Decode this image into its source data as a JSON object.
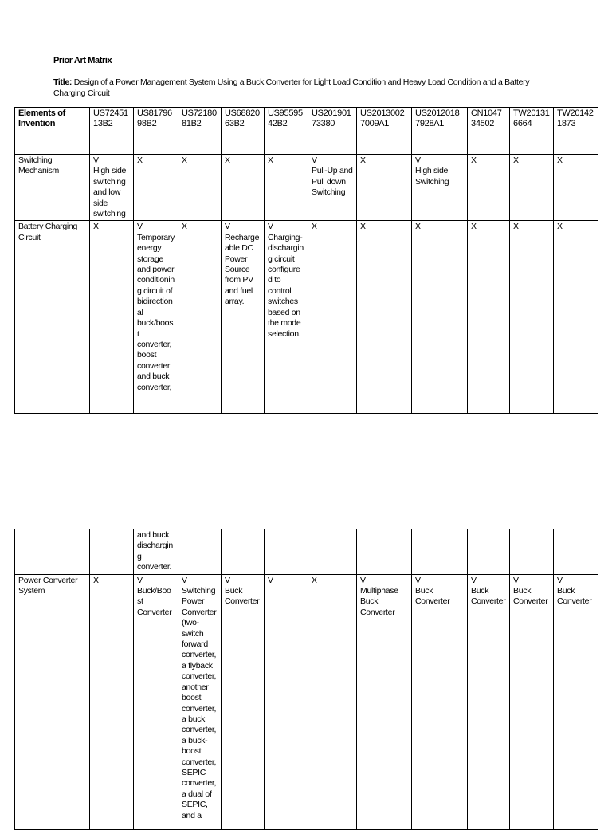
{
  "heading": "Prior Art Matrix",
  "title_label": "Title:",
  "title_text": "Design of a Power Management System Using a Buck Converter for Light Load Condition and Heavy Load Condition and a Battery Charging Circuit",
  "columns": [
    "Elements of Invention",
    "US7245113B2",
    "US8179698B2",
    "US7218081B2",
    "US6882063B2",
    "US9559542B2",
    "US20190173380",
    "US20130027009A1",
    "US20120187928A1",
    "CN104734502",
    "TW201316664",
    "TW201421873"
  ],
  "rows_page1": [
    {
      "label": "Switching Mechanism",
      "cells": [
        {
          "mark": "V",
          "detail": "High side switching and low side switching"
        },
        {
          "mark": "X",
          "detail": ""
        },
        {
          "mark": "X",
          "detail": ""
        },
        {
          "mark": "X",
          "detail": ""
        },
        {
          "mark": "X",
          "detail": ""
        },
        {
          "mark": "V",
          "detail": "Pull-Up and Pull down Switching"
        },
        {
          "mark": "X",
          "detail": ""
        },
        {
          "mark": "V",
          "detail": "High side Switching"
        },
        {
          "mark": "X",
          "detail": ""
        },
        {
          "mark": "X",
          "detail": ""
        },
        {
          "mark": "X",
          "detail": ""
        }
      ]
    },
    {
      "label": "Battery Charging Circuit",
      "cells": [
        {
          "mark": "X",
          "detail": ""
        },
        {
          "mark": "V",
          "detail": "Temporary energy storage and power conditioning circuit of bidirectional buck/boost converter, boost converter and buck converter,"
        },
        {
          "mark": "X",
          "detail": ""
        },
        {
          "mark": "V",
          "detail": "Rechargeable DC Power Source from PV and fuel array."
        },
        {
          "mark": "V",
          "detail": "Charging-discharging circuit configured to control switches based on the mode selection."
        },
        {
          "mark": "X",
          "detail": ""
        },
        {
          "mark": "X",
          "detail": ""
        },
        {
          "mark": "X",
          "detail": ""
        },
        {
          "mark": "X",
          "detail": ""
        },
        {
          "mark": "X",
          "detail": ""
        },
        {
          "mark": "X",
          "detail": ""
        }
      ]
    }
  ],
  "rows_page2": [
    {
      "label": "",
      "cells": [
        {
          "mark": "",
          "detail": ""
        },
        {
          "mark": "",
          "detail": "and buck discharging converter."
        },
        {
          "mark": "",
          "detail": ""
        },
        {
          "mark": "",
          "detail": ""
        },
        {
          "mark": "",
          "detail": ""
        },
        {
          "mark": "",
          "detail": ""
        },
        {
          "mark": "",
          "detail": ""
        },
        {
          "mark": "",
          "detail": ""
        },
        {
          "mark": "",
          "detail": ""
        },
        {
          "mark": "",
          "detail": ""
        },
        {
          "mark": "",
          "detail": ""
        }
      ]
    },
    {
      "label": "Power Converter System",
      "cells": [
        {
          "mark": "X",
          "detail": ""
        },
        {
          "mark": "V",
          "detail": "Buck/Boost Converter"
        },
        {
          "mark": "V",
          "detail": "Switching Power Converter (two-switch forward converter, a flyback converter, another boost converter, a buck converter, a buck-boost converter, SEPIC converter, a dual of SEPIC, and a"
        },
        {
          "mark": "V",
          "detail": "Buck Converter"
        },
        {
          "mark": "V",
          "detail": ""
        },
        {
          "mark": "X",
          "detail": ""
        },
        {
          "mark": "V",
          "detail": "Multiphase Buck Converter"
        },
        {
          "mark": "V",
          "detail": "Buck Converter"
        },
        {
          "mark": "V",
          "detail": "Buck Converter"
        },
        {
          "mark": "V",
          "detail": "Buck Converter"
        },
        {
          "mark": "V",
          "detail": "Buck Converter"
        }
      ]
    }
  ]
}
